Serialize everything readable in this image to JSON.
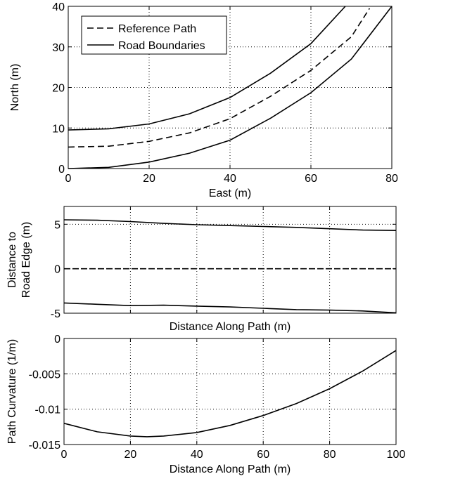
{
  "chart_data": [
    {
      "type": "line",
      "xlabel": "East (m)",
      "ylabel": "North (m)",
      "xlim": [
        0,
        80
      ],
      "ylim": [
        0,
        40
      ],
      "xticks": [
        0,
        20,
        40,
        60,
        80
      ],
      "yticks": [
        0,
        10,
        20,
        30,
        40
      ],
      "grid": true,
      "legend": "top-left",
      "series": [
        {
          "name": "Reference Path",
          "style": "dashed",
          "x": [
            0,
            10,
            20,
            30,
            40,
            50,
            60,
            70,
            74.5
          ],
          "y": [
            5.3,
            5.5,
            6.7,
            8.8,
            12.3,
            17.8,
            24.2,
            32.5,
            39.5
          ]
        },
        {
          "name": "Road Boundaries",
          "style": "solid",
          "x": [
            0,
            10,
            20,
            30,
            40,
            50,
            60,
            68.5
          ],
          "y": [
            9.5,
            9.8,
            11.0,
            13.5,
            17.5,
            23.5,
            30.8,
            40
          ]
        },
        {
          "name": "",
          "style": "solid",
          "x": [
            0,
            10,
            20,
            30,
            40,
            50,
            60,
            70,
            80
          ],
          "y": [
            0,
            0.3,
            1.6,
            3.8,
            7.0,
            12.4,
            18.7,
            27.0,
            40
          ]
        }
      ]
    },
    {
      "type": "line",
      "xlabel": "Distance Along Path (m)",
      "ylabel": [
        "Distance to",
        "Road Edge (m)"
      ],
      "xlim": [
        0,
        100
      ],
      "ylim": [
        -5,
        7
      ],
      "xticks": [
        0,
        20,
        40,
        60,
        80,
        100
      ],
      "yticks": [
        -5,
        0,
        5
      ],
      "show_xtick_labels": false,
      "grid": true,
      "series": [
        {
          "style": "solid",
          "x": [
            0,
            10,
            20,
            30,
            40,
            50,
            60,
            70,
            80,
            90,
            100
          ],
          "y": [
            5.5,
            5.45,
            5.3,
            5.1,
            4.95,
            4.85,
            4.75,
            4.65,
            4.5,
            4.35,
            4.3
          ]
        },
        {
          "style": "dashed",
          "x": [
            0,
            100
          ],
          "y": [
            0,
            0
          ]
        },
        {
          "style": "solid",
          "x": [
            0,
            10,
            20,
            30,
            40,
            50,
            60,
            70,
            80,
            90,
            100
          ],
          "y": [
            -3.85,
            -4.0,
            -4.15,
            -4.1,
            -4.2,
            -4.3,
            -4.45,
            -4.6,
            -4.65,
            -4.75,
            -4.95
          ]
        }
      ]
    },
    {
      "type": "line",
      "xlabel": "Distance Along Path (m)",
      "ylabel": "Path Curvature (1/m)",
      "xlim": [
        0,
        100
      ],
      "ylim": [
        -0.015,
        0
      ],
      "xticks": [
        0,
        20,
        40,
        60,
        80,
        100
      ],
      "yticks": [
        0,
        -0.005,
        -0.01,
        -0.015
      ],
      "ytick_labels": [
        "0",
        "-0.005",
        "-0.01",
        "-0.015"
      ],
      "grid": true,
      "series": [
        {
          "style": "solid",
          "x": [
            0,
            10,
            20,
            25,
            30,
            40,
            50,
            60,
            70,
            80,
            90,
            100
          ],
          "y": [
            -0.012,
            -0.0132,
            -0.0138,
            -0.0139,
            -0.0138,
            -0.0133,
            -0.0123,
            -0.0109,
            -0.0092,
            -0.0071,
            -0.0046,
            -0.0017
          ]
        }
      ]
    }
  ]
}
